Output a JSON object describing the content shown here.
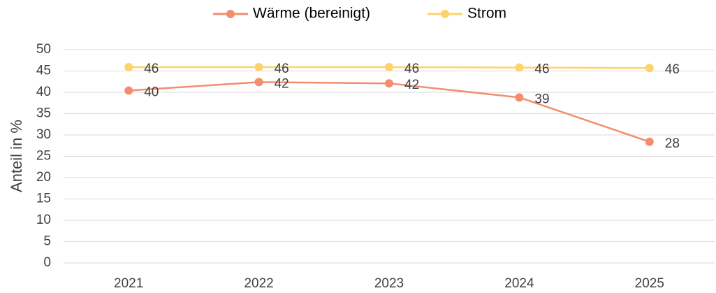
{
  "chart_data": {
    "type": "line",
    "y_label": "Anteil in %",
    "categories": [
      "2021",
      "2022",
      "2023",
      "2024",
      "2025"
    ],
    "series": [
      {
        "name": "Wärme (bereinigt)",
        "color": "#f28e6e",
        "values": [
          40.4,
          42.4,
          42.1,
          38.8,
          28.4
        ],
        "value_labels": [
          "40",
          "42",
          "42",
          "39",
          "28"
        ]
      },
      {
        "name": "Strom",
        "color": "#fdd46c",
        "values": [
          45.9,
          45.9,
          45.9,
          45.8,
          45.7
        ],
        "value_labels": [
          "46",
          "46",
          "46",
          "46",
          "46"
        ]
      }
    ],
    "ylim": [
      0,
      50
    ],
    "yticks": [
      0,
      5,
      10,
      15,
      20,
      25,
      30,
      35,
      40,
      45,
      50
    ],
    "grid": true,
    "legend": "top"
  }
}
